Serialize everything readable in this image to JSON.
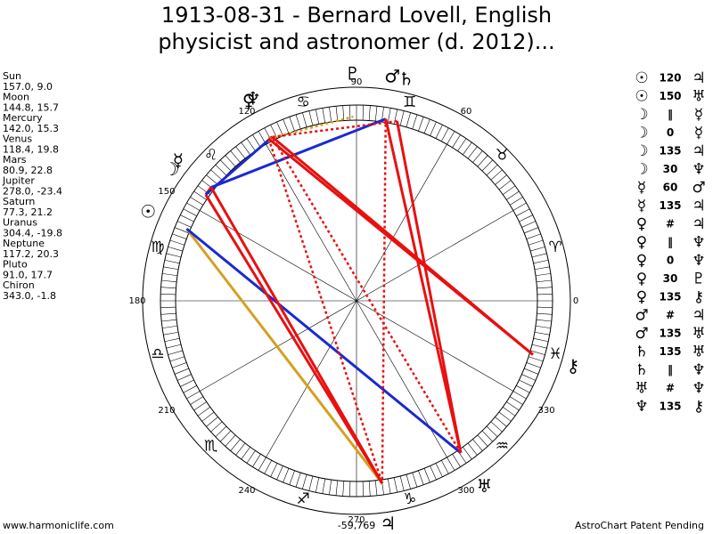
{
  "title": [
    "1913-08-31 - Bernard Lovell, English",
    "physicist and astronomer (d. 2012)..."
  ],
  "planets": [
    {
      "name": "Sun",
      "glyph": "☉",
      "position": "157.0, 9.0"
    },
    {
      "name": "Moon",
      "glyph": "☽",
      "position": "144.8, 15.7"
    },
    {
      "name": "Mercury",
      "glyph": "☿",
      "position": "142.0, 15.3"
    },
    {
      "name": "Venus",
      "glyph": "♀",
      "position": "118.4, 19.8"
    },
    {
      "name": "Mars",
      "glyph": "♂",
      "position": "80.9, 22.8"
    },
    {
      "name": "Jupiter",
      "glyph": "♃",
      "position": "278.0, -23.4"
    },
    {
      "name": "Saturn",
      "glyph": "♄",
      "position": "77.3, 21.2"
    },
    {
      "name": "Uranus",
      "glyph": "♅",
      "position": "304.4, -19.8"
    },
    {
      "name": "Neptune",
      "glyph": "♆",
      "position": "117.2, 20.3"
    },
    {
      "name": "Pluto",
      "glyph": "♇",
      "position": "91.0, 17.7"
    },
    {
      "name": "Chiron",
      "glyph": "⚷",
      "position": "343.0, -1.8"
    }
  ],
  "aspects": [
    {
      "p1": "☉",
      "aspect": "120",
      "p2": "♃",
      "color": "#d4a020"
    },
    {
      "p1": "☉",
      "aspect": "150",
      "p2": "♅",
      "color": "#1a2ad0"
    },
    {
      "p1": "☽",
      "aspect": "‖",
      "p2": "☿",
      "color": "#e81010",
      "dotted": true
    },
    {
      "p1": "☽",
      "aspect": "0",
      "p2": "☿",
      "color": "#e81010"
    },
    {
      "p1": "☽",
      "aspect": "135",
      "p2": "♃",
      "color": "#e81010"
    },
    {
      "p1": "☽",
      "aspect": "30",
      "p2": "♆",
      "color": "#1a2ad0"
    },
    {
      "p1": "☿",
      "aspect": "60",
      "p2": "♂",
      "color": "#1a2ad0"
    },
    {
      "p1": "☿",
      "aspect": "135",
      "p2": "♃",
      "color": "#e81010"
    },
    {
      "p1": "♀",
      "aspect": "#",
      "p2": "♃",
      "color": "#e81010",
      "dotted": true
    },
    {
      "p1": "♀",
      "aspect": "‖",
      "p2": "♆",
      "color": "#e81010",
      "dotted": true
    },
    {
      "p1": "♀",
      "aspect": "0",
      "p2": "♆",
      "color": "#e81010"
    },
    {
      "p1": "♀",
      "aspect": "30",
      "p2": "♇",
      "color": "#d4a020",
      "dotted": true
    },
    {
      "p1": "♀",
      "aspect": "135",
      "p2": "⚷",
      "color": "#e81010"
    },
    {
      "p1": "♂",
      "aspect": "#",
      "p2": "♃",
      "color": "#e81010",
      "dotted": true
    },
    {
      "p1": "♂",
      "aspect": "135",
      "p2": "♅",
      "color": "#e81010"
    },
    {
      "p1": "♄",
      "aspect": "135",
      "p2": "♅",
      "color": "#e81010"
    },
    {
      "p1": "♄",
      "aspect": "‖",
      "p2": "♆",
      "color": "#e81010",
      "dotted": true
    },
    {
      "p1": "♅",
      "aspect": "#",
      "p2": "♆",
      "color": "#e81010",
      "dotted": true
    },
    {
      "p1": "♆",
      "aspect": "135",
      "p2": "⚷",
      "color": "#e81010"
    }
  ],
  "signs": [
    "♈",
    "♉",
    "♊",
    "♋",
    "♌",
    "♍",
    "♎",
    "♏",
    "♐",
    "♑",
    "♒",
    "♓"
  ],
  "degree_labels": [
    0,
    60,
    90,
    120,
    150,
    180,
    210,
    240,
    270,
    300,
    330
  ],
  "bottom_value": "-59,769",
  "footer": {
    "left": "www.harmoniclife.com",
    "right": "AstroChart Patent Pending"
  }
}
